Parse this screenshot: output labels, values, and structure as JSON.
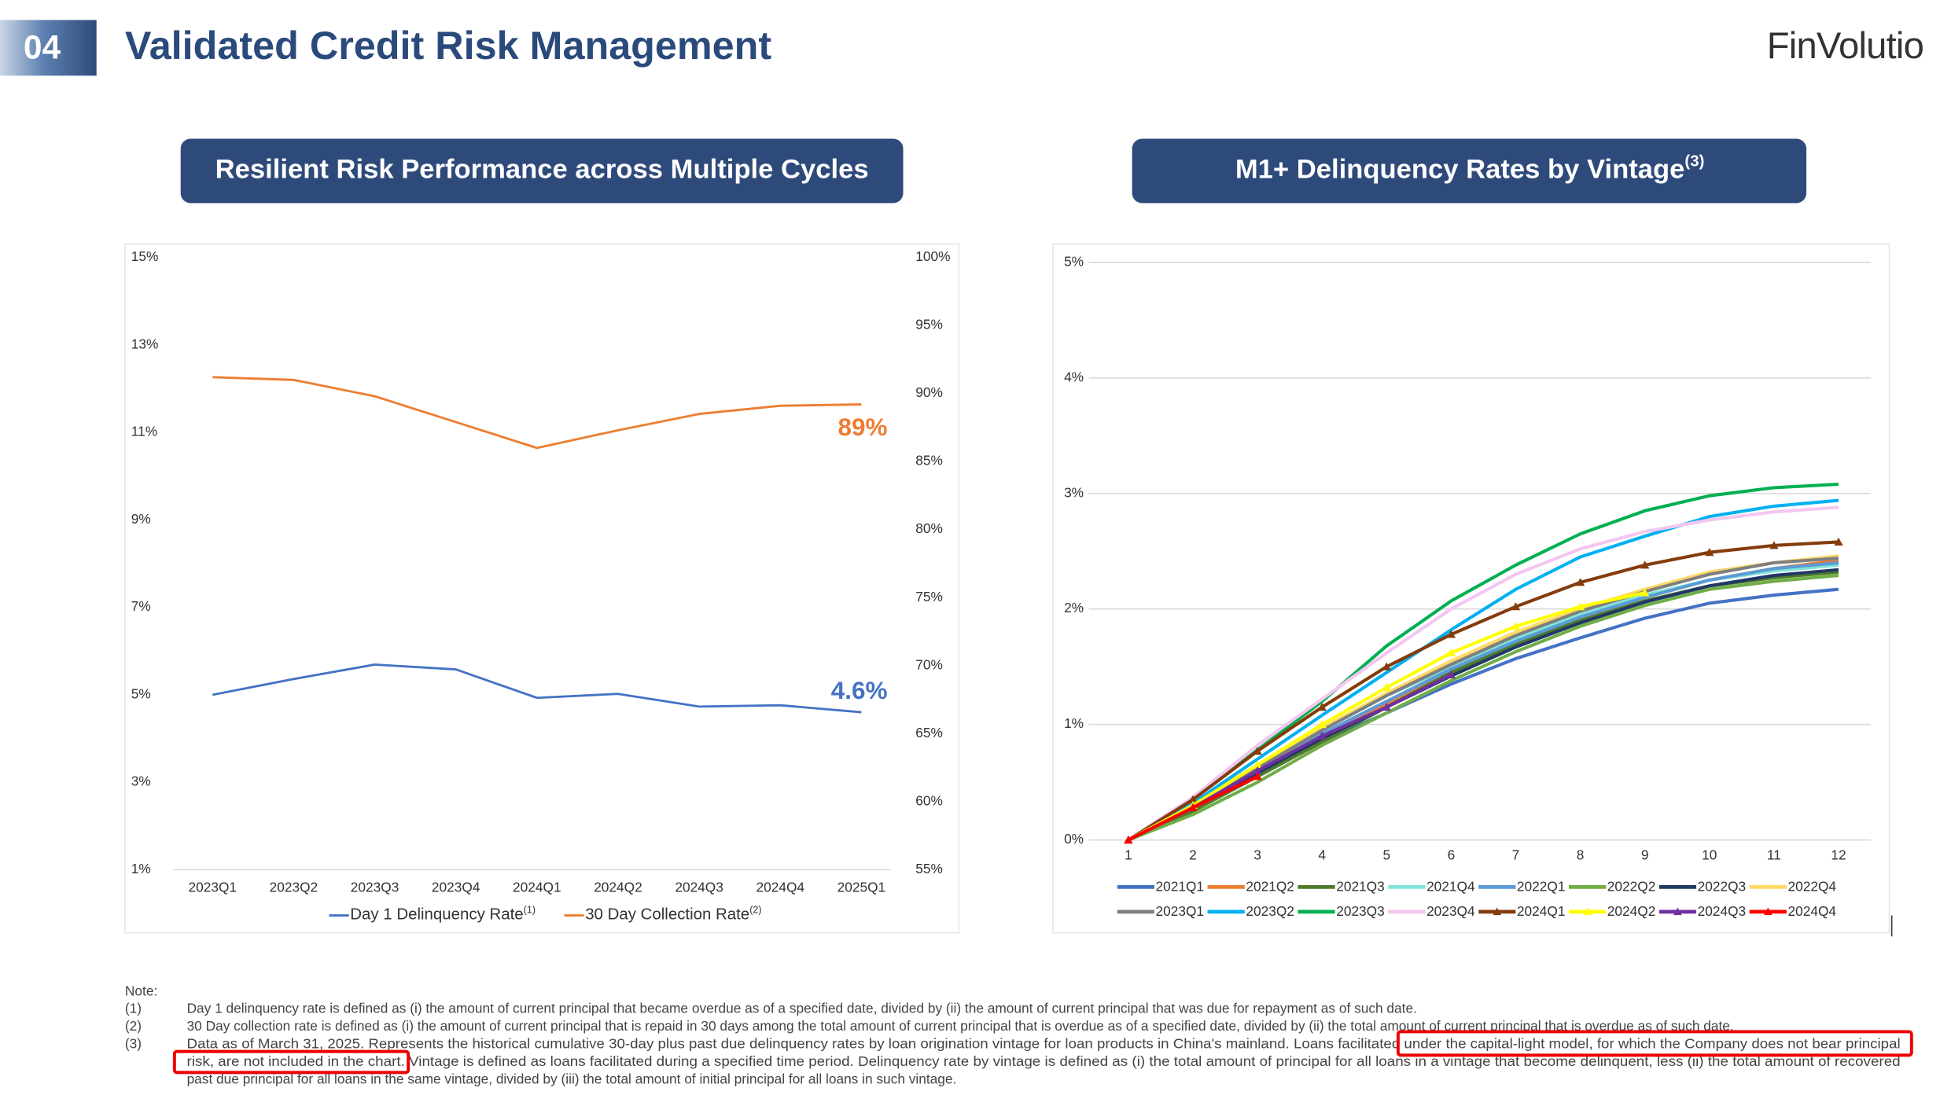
{
  "header": {
    "section": "04",
    "title": "Validated Credit Risk Management",
    "logo": "FinVolutio"
  },
  "panels": [
    {
      "title": "Resilient Risk Performance across Multiple Cycles"
    },
    {
      "title": "M1+ Delinquency Rates by Vintage",
      "note_ref": "(3)"
    }
  ],
  "chart_data": [
    {
      "type": "line",
      "categories": [
        "2023Q1",
        "2023Q2",
        "2023Q3",
        "2023Q4",
        "2024Q1",
        "2024Q2",
        "2024Q3",
        "2024Q4",
        "2025Q1"
      ],
      "ylim": [
        1,
        15
      ],
      "yticks": [
        {
          "value": 1,
          "label": "1%"
        },
        {
          "value": 3,
          "label": "3%"
        },
        {
          "value": 5,
          "label": "5%"
        },
        {
          "value": 7,
          "label": "7%"
        },
        {
          "value": 9,
          "label": "9%"
        },
        {
          "value": 11,
          "label": "11%"
        },
        {
          "value": 13,
          "label": "13%"
        },
        {
          "value": 15,
          "label": "15%"
        }
      ],
      "y2lim": [
        55,
        100
      ],
      "y2ticks": [
        {
          "value": 55,
          "label": "55%"
        },
        {
          "value": 60,
          "label": "60%"
        },
        {
          "value": 65,
          "label": "65%"
        },
        {
          "value": 70,
          "label": "70%"
        },
        {
          "value": 75,
          "label": "75%"
        },
        {
          "value": 80,
          "label": "80%"
        },
        {
          "value": 85,
          "label": "85%"
        },
        {
          "value": 90,
          "label": "90%"
        },
        {
          "value": 95,
          "label": "95%"
        },
        {
          "value": 100,
          "label": "100%"
        }
      ],
      "grid": false,
      "series": [
        {
          "name": "Day 1 Delinquency Rate",
          "note_ref": "(1)",
          "color": "#4472c4",
          "values": [
            5.0,
            5.36,
            5.69,
            5.58,
            4.93,
            5.02,
            4.73,
            4.76,
            4.6
          ],
          "value_labels": [
            null,
            null,
            null,
            null,
            null,
            null,
            null,
            null,
            "4.6%"
          ]
        },
        {
          "name": "30 Day Collection Rate",
          "note_ref": "(2)",
          "color": "#ed7d31",
          "axis": "y2",
          "values": [
            91.2,
            91.0,
            89.8,
            87.9,
            86.0,
            87.3,
            88.5,
            89.1,
            89.2
          ],
          "value_labels": [
            null,
            null,
            null,
            null,
            null,
            null,
            null,
            null,
            "89%"
          ]
        }
      ]
    },
    {
      "type": "line",
      "x": [
        1,
        2,
        3,
        4,
        5,
        6,
        7,
        8,
        9,
        10,
        11,
        12
      ],
      "xlim": [
        1,
        12
      ],
      "xticks": [
        1,
        2,
        3,
        4,
        5,
        6,
        7,
        8,
        9,
        10,
        11,
        12
      ],
      "ylim": [
        0,
        5
      ],
      "yticks": [
        {
          "value": 0,
          "label": "0%"
        },
        {
          "value": 1,
          "label": "1%"
        },
        {
          "value": 2,
          "label": "2%"
        },
        {
          "value": 3,
          "label": "3%"
        },
        {
          "value": 4,
          "label": "4%"
        },
        {
          "value": 5,
          "label": "5%"
        }
      ],
      "grid": true,
      "series": [
        {
          "name": "2021Q1",
          "color": "#4472c4",
          "values": [
            0,
            0.27,
            0.55,
            0.85,
            1.1,
            1.35,
            1.57,
            1.75,
            1.92,
            2.05,
            2.12,
            2.17
          ]
        },
        {
          "name": "2021Q2",
          "color": "#ed7d31",
          "values": [
            0,
            0.3,
            0.6,
            0.9,
            1.18,
            1.45,
            1.7,
            1.92,
            2.1,
            2.25,
            2.35,
            2.42
          ]
        },
        {
          "name": "2021Q3",
          "color": "#4e7a2a",
          "values": [
            0,
            0.25,
            0.55,
            0.85,
            1.15,
            1.45,
            1.7,
            1.9,
            2.07,
            2.2,
            2.27,
            2.32
          ]
        },
        {
          "name": "2021Q4",
          "color": "#7fe3d8",
          "values": [
            0,
            0.3,
            0.62,
            0.95,
            1.25,
            1.5,
            1.75,
            1.95,
            2.12,
            2.25,
            2.33,
            2.38
          ]
        },
        {
          "name": "2022Q1",
          "color": "#5b9bd5",
          "values": [
            0,
            0.3,
            0.62,
            0.92,
            1.2,
            1.48,
            1.72,
            1.93,
            2.1,
            2.25,
            2.35,
            2.4
          ]
        },
        {
          "name": "2022Q2",
          "color": "#70ad47",
          "values": [
            0,
            0.22,
            0.5,
            0.82,
            1.1,
            1.38,
            1.63,
            1.85,
            2.03,
            2.17,
            2.24,
            2.29
          ]
        },
        {
          "name": "2022Q3",
          "color": "#203864",
          "values": [
            0,
            0.28,
            0.58,
            0.88,
            1.15,
            1.42,
            1.67,
            1.88,
            2.06,
            2.2,
            2.29,
            2.34
          ]
        },
        {
          "name": "2022Q4",
          "color": "#ffd966",
          "values": [
            0,
            0.32,
            0.65,
            0.97,
            1.27,
            1.55,
            1.8,
            2.0,
            2.17,
            2.32,
            2.4,
            2.46
          ]
        },
        {
          "name": "2023Q1",
          "color": "#7f7f7f",
          "values": [
            0,
            0.3,
            0.62,
            0.95,
            1.25,
            1.52,
            1.77,
            1.98,
            2.15,
            2.3,
            2.4,
            2.44
          ]
        },
        {
          "name": "2023Q2",
          "color": "#00b0f0",
          "values": [
            0,
            0.32,
            0.7,
            1.08,
            1.45,
            1.82,
            2.17,
            2.45,
            2.63,
            2.8,
            2.89,
            2.94
          ]
        },
        {
          "name": "2023Q3",
          "color": "#00b050",
          "values": [
            0,
            0.35,
            0.78,
            1.2,
            1.68,
            2.07,
            2.38,
            2.65,
            2.85,
            2.98,
            3.05,
            3.08
          ]
        },
        {
          "name": "2023Q4",
          "color": "#f4c6f0",
          "values": [
            0,
            0.37,
            0.82,
            1.22,
            1.62,
            2.0,
            2.3,
            2.52,
            2.67,
            2.77,
            2.84,
            2.88
          ]
        },
        {
          "name": "2024Q1",
          "color": "#843c0c",
          "marker": "triangle",
          "values": [
            0,
            0.35,
            0.77,
            1.15,
            1.5,
            1.78,
            2.02,
            2.23,
            2.38,
            2.49,
            2.55,
            2.58
          ]
        },
        {
          "name": "2024Q2",
          "color": "#ffff00",
          "marker": "triangle",
          "values": [
            0,
            0.3,
            0.65,
            1.0,
            1.32,
            1.62,
            1.85,
            2.02,
            2.14,
            null,
            null,
            null
          ]
        },
        {
          "name": "2024Q3",
          "color": "#7030a0",
          "marker": "triangle",
          "values": [
            0,
            0.28,
            0.6,
            0.9,
            1.15,
            1.43,
            null,
            null,
            null,
            null,
            null,
            null
          ]
        },
        {
          "name": "2024Q4",
          "color": "#ff0000",
          "marker": "triangle",
          "values": [
            0,
            0.28,
            0.55,
            null,
            null,
            null,
            null,
            null,
            null,
            null,
            null,
            null
          ]
        }
      ]
    }
  ],
  "notes": {
    "title": "Note:",
    "items": [
      {
        "num": "(1)",
        "lines": [
          "Day 1 delinquency rate is defined as (i) the amount of current principal that became overdue as of a specified date, divided by (ii) the amount of current principal that was due for repayment as of such date."
        ]
      },
      {
        "num": "(2)",
        "lines": [
          "30 Day collection rate is defined as (i) the amount of current principal that is repaid in 30 days among the total amount of current principal that is overdue as of a specified date, divided by (ii) the total amount of current principal that is overdue as of such date."
        ]
      },
      {
        "num": "(3)",
        "lines": [
          "Data as of March 31, 2025. Represents the historical cumulative 30-day plus past due delinquency rates by loan origination vintage for loan products in China's mainland. Loans facilitated under the capital-light model, for which the Company does not bear principal",
          "risk, are not included in the chart. Vintage is defined as loans facilitated during a specified time period. Delinquency rate by vintage is defined as (i) the total amount of principal for all loans in a vintage that become delinquent, less (ii) the total amount of recovered",
          "past due principal for all loans in the same vintage, divided by (iii) the total amount of initial principal for all loans in such vintage."
        ]
      }
    ]
  }
}
